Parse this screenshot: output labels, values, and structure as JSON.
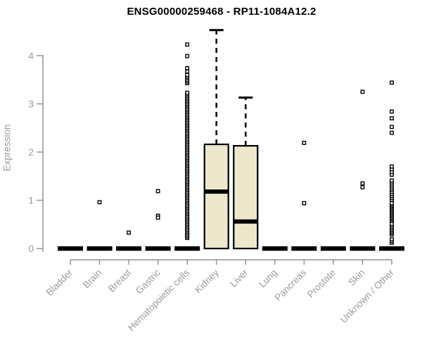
{
  "chart_data": {
    "type": "boxplot",
    "title": "ENSG00000259468 - RP11-1084A12.2",
    "ylabel": "Expression",
    "xlabel": "",
    "ylim": [
      0,
      4.6
    ],
    "yticks": [
      0,
      1,
      2,
      3,
      4
    ],
    "grid": false,
    "legend": false,
    "categories": [
      "Bladder",
      "Brain",
      "Breast",
      "Gastric",
      "Hematopoietic cells",
      "Kidney",
      "Liver",
      "Lung",
      "Pancreas",
      "Prostate",
      "Skin",
      "Unknown / Other"
    ],
    "series": [
      {
        "category": "Bladder",
        "q1": 0,
        "median": 0,
        "q3": 0,
        "whisker_low": 0,
        "whisker_high": 0,
        "outliers": [],
        "outlier_ranges": []
      },
      {
        "category": "Brain",
        "q1": 0,
        "median": 0,
        "q3": 0,
        "whisker_low": 0,
        "whisker_high": 0,
        "outliers": [
          0.96
        ],
        "outlier_ranges": []
      },
      {
        "category": "Breast",
        "q1": 0,
        "median": 0,
        "q3": 0,
        "whisker_low": 0,
        "whisker_high": 0,
        "outliers": [
          0.33
        ],
        "outlier_ranges": []
      },
      {
        "category": "Gastric",
        "q1": 0,
        "median": 0,
        "q3": 0,
        "whisker_low": 0,
        "whisker_high": 0,
        "outliers": [
          1.19,
          0.68,
          0.64
        ],
        "outlier_ranges": []
      },
      {
        "category": "Hematopoietic cells",
        "q1": 0,
        "median": 0,
        "q3": 0,
        "whisker_low": 0,
        "whisker_high": 0,
        "outliers": [
          4.23,
          3.99,
          3.74,
          3.67
        ],
        "outlier_ranges": [
          {
            "from": 3.43,
            "to": 3.6,
            "count": 6
          },
          {
            "from": 0.22,
            "to": 3.23,
            "count": 92
          }
        ]
      },
      {
        "category": "Kidney",
        "q1": 0,
        "median": 1.18,
        "q3": 2.16,
        "whisker_low": 0,
        "whisker_high": 4.53,
        "outliers": [],
        "outlier_ranges": []
      },
      {
        "category": "Liver",
        "q1": 0,
        "median": 0.56,
        "q3": 2.13,
        "whisker_low": 0,
        "whisker_high": 3.13,
        "outliers": [],
        "outlier_ranges": []
      },
      {
        "category": "Lung",
        "q1": 0,
        "median": 0,
        "q3": 0,
        "whisker_low": 0,
        "whisker_high": 0,
        "outliers": [],
        "outlier_ranges": []
      },
      {
        "category": "Pancreas",
        "q1": 0,
        "median": 0,
        "q3": 0,
        "whisker_low": 0,
        "whisker_high": 0,
        "outliers": [
          2.19,
          0.94
        ],
        "outlier_ranges": []
      },
      {
        "category": "Prostate",
        "q1": 0,
        "median": 0,
        "q3": 0,
        "whisker_low": 0,
        "whisker_high": 0,
        "outliers": [],
        "outlier_ranges": []
      },
      {
        "category": "Skin",
        "q1": 0,
        "median": 0,
        "q3": 0,
        "whisker_low": 0,
        "whisker_high": 0,
        "outliers": [
          3.25,
          1.35,
          1.27
        ],
        "outlier_ranges": []
      },
      {
        "category": "Unknown / Other",
        "q1": 0,
        "median": 0,
        "q3": 0,
        "whisker_low": 0,
        "whisker_high": 0,
        "outliers": [
          3.44,
          2.84,
          2.7,
          2.52,
          2.4
        ],
        "outlier_ranges": [
          {
            "from": 1.53,
            "to": 1.7,
            "count": 4
          },
          {
            "from": 0.97,
            "to": 1.41,
            "count": 12
          },
          {
            "from": 0.58,
            "to": 0.94,
            "count": 14
          },
          {
            "from": 0.29,
            "to": 0.51,
            "count": 8
          },
          {
            "from": 0.12,
            "to": 0.19,
            "count": 3
          }
        ]
      }
    ],
    "colors": {
      "box_fill": "#EDE8CC",
      "box_stroke": "#000000",
      "median": "#000000",
      "whisker": "#000000",
      "outlier": "#000000",
      "axis": "#8F8F8F",
      "tick_label": "#9B9B9B",
      "title": "#000000",
      "background": "#FFFFFF"
    }
  }
}
